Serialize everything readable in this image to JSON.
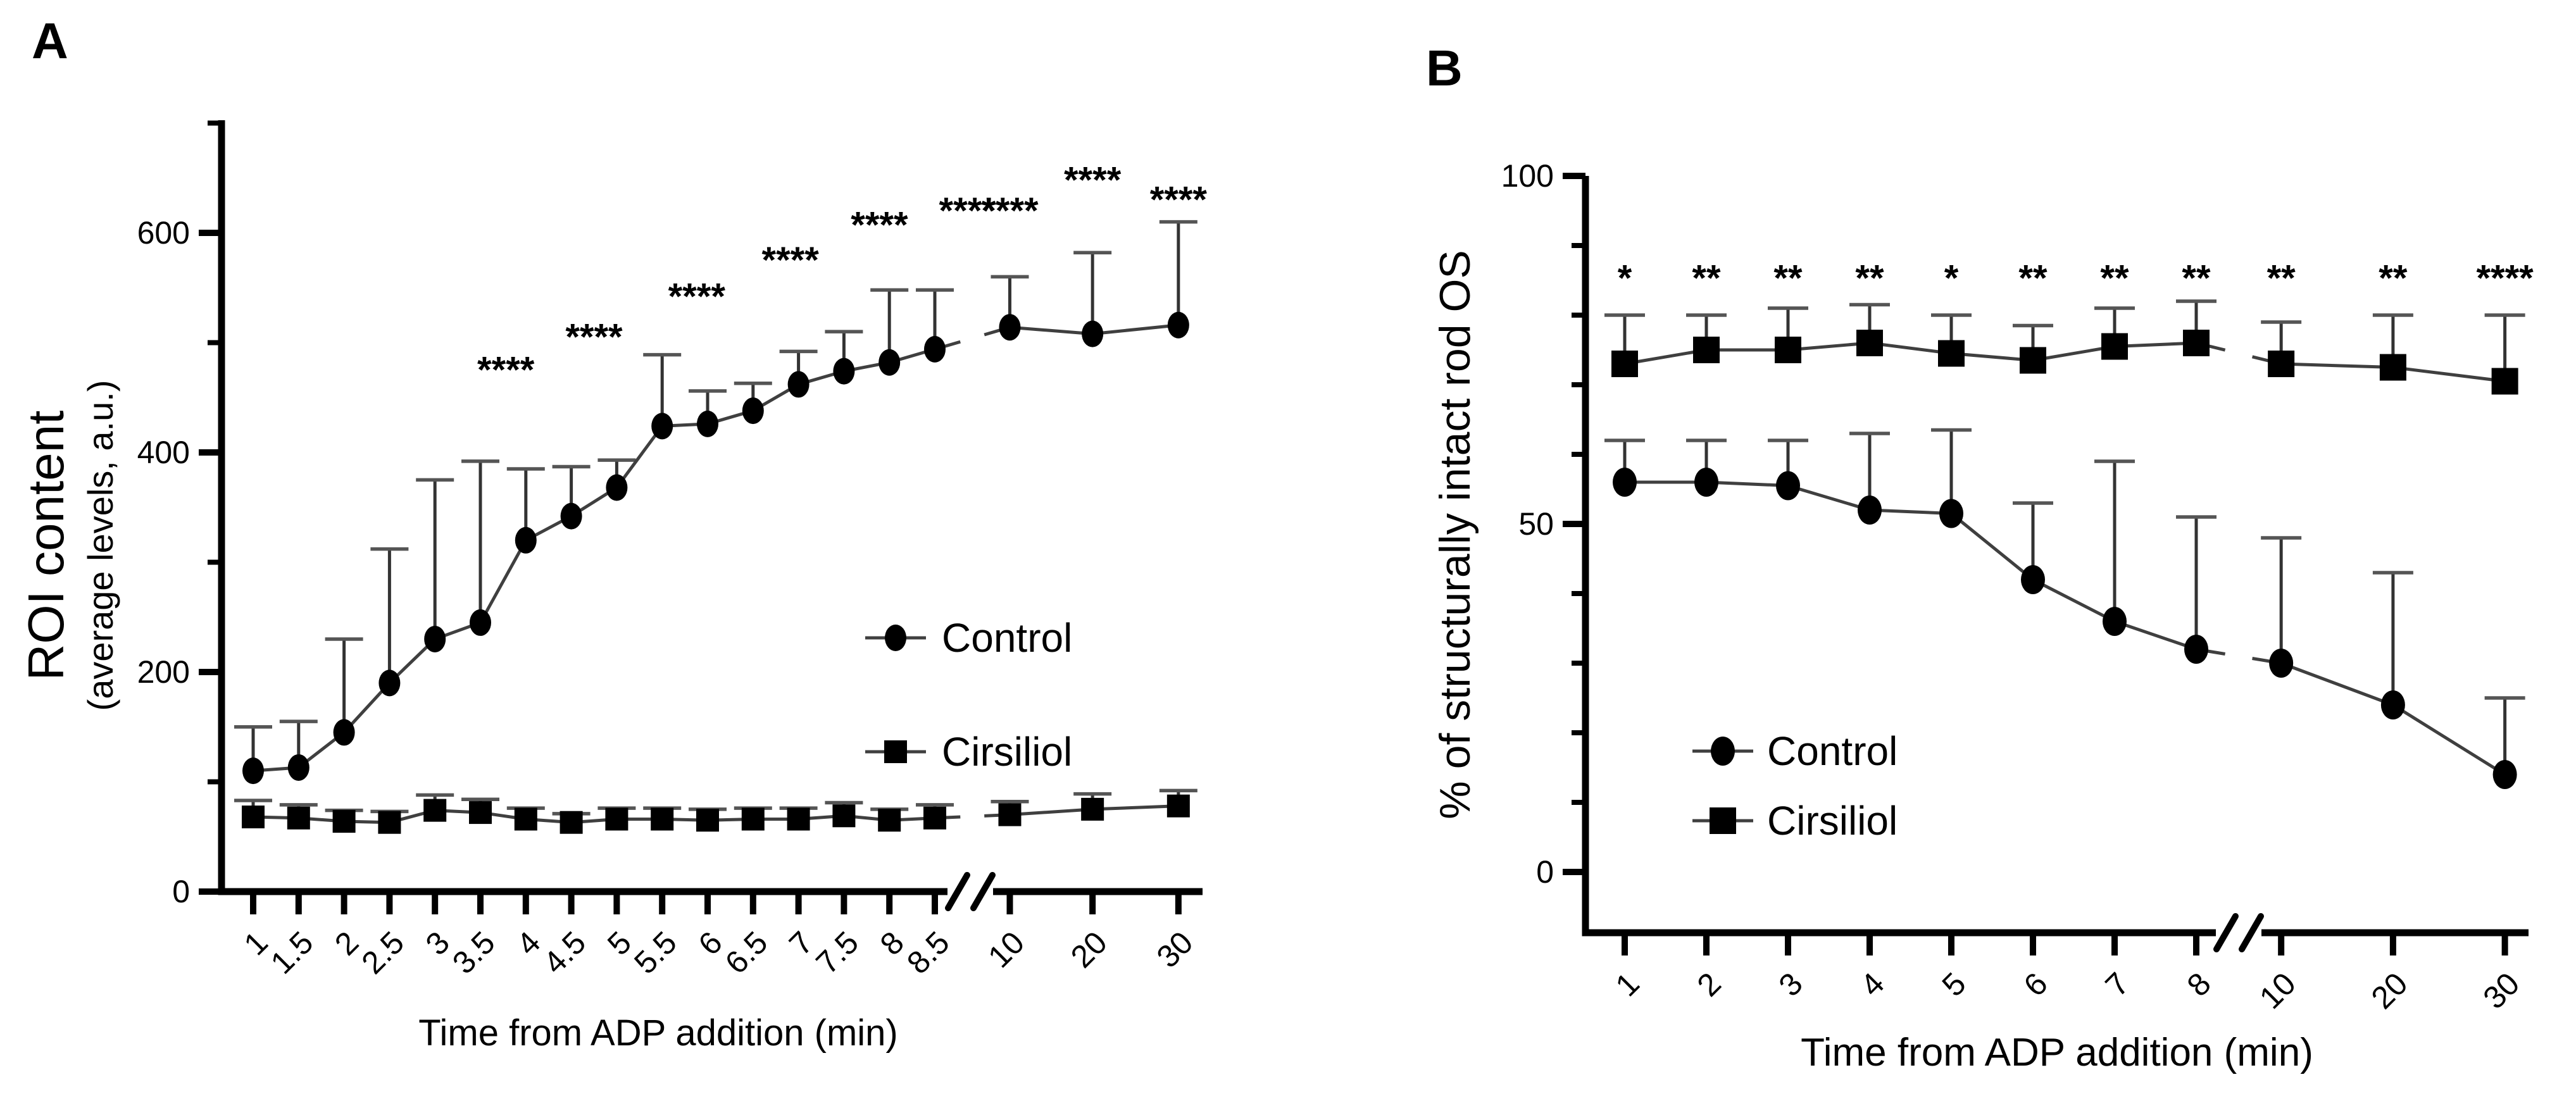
{
  "figure": {
    "background": "#ffffff",
    "ink_color": "#000000",
    "series_line_color": "#3f3f3f",
    "panel_labels": [
      "A",
      "B"
    ]
  },
  "chart_data": [
    {
      "type": "line",
      "panel_label": "A",
      "title": "",
      "xlabel": "Time from ADP addition (min)",
      "ylabel_main": "ROI content",
      "ylabel_sub": "(average levels, a.u.)",
      "x": [
        1,
        1.5,
        2,
        2.5,
        3,
        3.5,
        4,
        4.5,
        5,
        5.5,
        6,
        6.5,
        7,
        7.5,
        8,
        8.5,
        10,
        20,
        30
      ],
      "x_tick_labels": [
        "1",
        "1.5",
        "2",
        "2.5",
        "3",
        "3.5",
        "4",
        "4.5",
        "5",
        "5.5",
        "6",
        "6.5",
        "7",
        "7.5",
        "8",
        "8.5",
        "10",
        "20",
        "30"
      ],
      "axis_break_between": [
        "8.5",
        "10"
      ],
      "break_after_index": 15,
      "ylim": [
        0,
        700
      ],
      "y_major_ticks": [
        0,
        200,
        400,
        600
      ],
      "y_minor_ticks": [
        100,
        300,
        500,
        700
      ],
      "grid": false,
      "legend_position": "inside-right",
      "series": [
        {
          "name": "Control",
          "marker": "circle",
          "values": [
            110,
            113,
            145,
            190,
            230,
            245,
            320,
            342,
            368,
            424,
            426,
            438,
            462,
            474,
            482,
            494,
            514,
            508,
            516
          ],
          "err_top": [
            150,
            155,
            230,
            312,
            375,
            392,
            385,
            387,
            393,
            489,
            456,
            463,
            492,
            510,
            548,
            548,
            560,
            582,
            610
          ]
        },
        {
          "name": "Cirsiliol",
          "marker": "square",
          "values": [
            68,
            67,
            64,
            63,
            74,
            72,
            66,
            63,
            66,
            66,
            65,
            66,
            66,
            69,
            65,
            67,
            70,
            75,
            78
          ],
          "err_top": [
            83,
            79,
            74,
            73,
            88,
            84,
            76,
            71,
            76,
            76,
            75,
            76,
            76,
            81,
            75,
            79,
            82,
            89,
            92
          ]
        }
      ],
      "significance": [
        {
          "x": 3.78,
          "y": 489,
          "text": "****"
        },
        {
          "x": 4.75,
          "y": 519,
          "text": "****"
        },
        {
          "x": 5.88,
          "y": 556,
          "text": "****"
        },
        {
          "x": 6.91,
          "y": 589,
          "text": "****"
        },
        {
          "x": 7.89,
          "y": 621,
          "text": "****"
        },
        {
          "x": 8.86,
          "y": 634,
          "text": "****"
        },
        {
          "x": 10,
          "y": 634,
          "text": "****"
        },
        {
          "x": 20,
          "y": 662,
          "text": "****"
        },
        {
          "x": 30,
          "y": 644,
          "text": "****"
        }
      ]
    },
    {
      "type": "line",
      "panel_label": "B",
      "title": "",
      "xlabel": "Time from ADP addition (min)",
      "ylabel_main": "% of structurally intact rod OS",
      "ylabel_sub": "",
      "x": [
        1,
        2,
        3,
        4,
        5,
        6,
        7,
        8,
        10,
        20,
        30
      ],
      "x_tick_labels": [
        "1",
        "2",
        "3",
        "4",
        "5",
        "6",
        "7",
        "8",
        "10",
        "20",
        "30"
      ],
      "axis_break_between": [
        "8",
        "10"
      ],
      "break_after_index": 7,
      "ylim": [
        0,
        100
      ],
      "y_major_ticks": [
        0,
        50,
        100
      ],
      "y_minor_ticks": [
        10,
        20,
        30,
        40,
        60,
        70,
        80,
        90
      ],
      "grid": false,
      "legend_position": "inside-left",
      "series": [
        {
          "name": "Control",
          "marker": "circle",
          "values": [
            56,
            56,
            55.5,
            52,
            51.5,
            42,
            36,
            32,
            30,
            24,
            14
          ],
          "err_top": [
            62,
            62,
            62,
            63,
            63.5,
            53,
            59,
            51,
            48,
            43,
            25
          ]
        },
        {
          "name": "Cirsiliol",
          "marker": "square",
          "values": [
            73,
            75,
            75,
            76,
            74.5,
            73.5,
            75.5,
            76,
            73,
            72.5,
            70.5
          ],
          "err_top": [
            80,
            80,
            81,
            81.5,
            80,
            78.5,
            81,
            82,
            79,
            80,
            80
          ]
        }
      ],
      "significance": [
        {
          "x": 1,
          "y": 87.5,
          "text": "*"
        },
        {
          "x": 2,
          "y": 87.5,
          "text": "**"
        },
        {
          "x": 3,
          "y": 87.5,
          "text": "**"
        },
        {
          "x": 4,
          "y": 87.5,
          "text": "**"
        },
        {
          "x": 5,
          "y": 87.5,
          "text": "*"
        },
        {
          "x": 6,
          "y": 87.5,
          "text": "**"
        },
        {
          "x": 7,
          "y": 87.5,
          "text": "**"
        },
        {
          "x": 8,
          "y": 87.5,
          "text": "**"
        },
        {
          "x": 10,
          "y": 87.5,
          "text": "**"
        },
        {
          "x": 20,
          "y": 87.5,
          "text": "**"
        },
        {
          "x": 30,
          "y": 87.5,
          "text": "****"
        }
      ]
    }
  ]
}
